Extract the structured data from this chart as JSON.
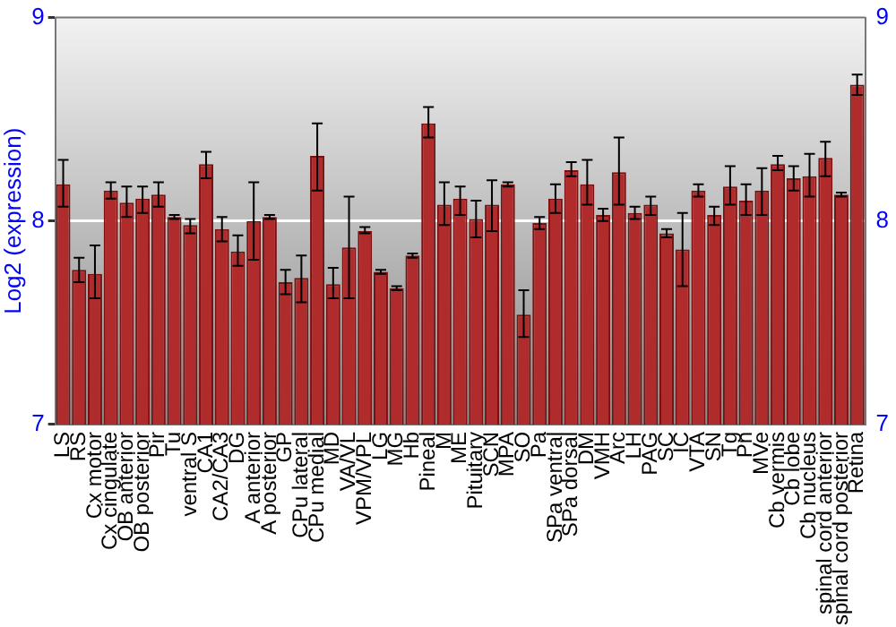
{
  "chart_data": {
    "type": "bar",
    "ylabel": "Log2 (expression)",
    "categories": [
      "LS",
      "RS",
      "Cx motor",
      "Cx cingulate",
      "OB anterior",
      "OB posterior",
      "Pir",
      "Tu",
      "ventral S",
      "CA1",
      "CA2/CA3",
      "DG",
      "A anterior",
      "A posterior",
      "GP",
      "CPu lateral",
      "CPu medial",
      "MD",
      "VA/VL",
      "VPM/VPL",
      "LG",
      "MG",
      "Hb",
      "Pineal",
      "M",
      "ME",
      "Pituitary",
      "SCN",
      "MPA",
      "SO",
      "Pa",
      "SPa ventral",
      "SPa dorsal",
      "DM",
      "VMH",
      "Arc",
      "LH",
      "PAG",
      "SC",
      "IC",
      "VTA",
      "SN",
      "Tg",
      "Pn",
      "MVe",
      "Cb vermis",
      "Cb lobe",
      "Cb nucleus",
      "spinal cord anterior",
      "spinal cord posterior",
      "Retina"
    ],
    "series": [
      {
        "color": "#b02c2c",
        "values": [
          8.18,
          7.76,
          7.74,
          8.15,
          8.09,
          8.11,
          8.13,
          8.02,
          7.98,
          8.28,
          7.96,
          7.85,
          8.0,
          8.02,
          7.7,
          7.72,
          8.32,
          7.69,
          7.87,
          7.95,
          7.75,
          7.67,
          7.83,
          8.48,
          8.08,
          8.11,
          8.01,
          8.08,
          8.18,
          7.54,
          7.99,
          8.11,
          8.25,
          8.18,
          8.03,
          8.24,
          8.04,
          8.08,
          7.94,
          7.86,
          8.15,
          8.03,
          8.17,
          8.1,
          8.15,
          8.28,
          8.21,
          8.22,
          8.31,
          8.13,
          8.67
        ],
        "errors": [
          [
            8.07,
            8.3
          ],
          [
            7.7,
            7.82
          ],
          [
            7.62,
            7.88
          ],
          [
            8.11,
            8.19
          ],
          [
            8.02,
            8.17
          ],
          [
            8.04,
            8.17
          ],
          [
            8.07,
            8.19
          ],
          [
            8.01,
            8.03
          ],
          [
            7.94,
            8.01
          ],
          [
            8.21,
            8.34
          ],
          [
            7.9,
            8.02
          ],
          [
            7.78,
            7.93
          ],
          [
            7.81,
            8.19
          ],
          [
            8.01,
            8.03
          ],
          [
            7.64,
            7.76
          ],
          [
            7.6,
            7.83
          ],
          [
            8.15,
            8.48
          ],
          [
            7.62,
            7.77
          ],
          [
            7.62,
            8.12
          ],
          [
            7.94,
            7.97
          ],
          [
            7.74,
            7.76
          ],
          [
            7.66,
            7.68
          ],
          [
            7.82,
            7.84
          ],
          [
            8.41,
            8.56
          ],
          [
            7.98,
            8.19
          ],
          [
            8.03,
            8.17
          ],
          [
            7.92,
            8.1
          ],
          [
            7.95,
            8.2
          ],
          [
            8.17,
            8.19
          ],
          [
            7.43,
            7.66
          ],
          [
            7.96,
            8.02
          ],
          [
            8.04,
            8.18
          ],
          [
            8.22,
            8.29
          ],
          [
            8.08,
            8.3
          ],
          [
            8.0,
            8.06
          ],
          [
            8.08,
            8.41
          ],
          [
            8.01,
            8.07
          ],
          [
            8.03,
            8.12
          ],
          [
            7.92,
            7.96
          ],
          [
            7.68,
            8.04
          ],
          [
            8.12,
            8.18
          ],
          [
            7.98,
            8.07
          ],
          [
            8.08,
            8.27
          ],
          [
            8.03,
            8.18
          ],
          [
            8.03,
            8.26
          ],
          [
            8.25,
            8.32
          ],
          [
            8.15,
            8.27
          ],
          [
            8.12,
            8.33
          ],
          [
            8.22,
            8.39
          ],
          [
            8.12,
            8.14
          ],
          [
            8.62,
            8.72
          ]
        ]
      }
    ],
    "ylim": [
      7,
      9
    ],
    "yticks": [
      7,
      8,
      9
    ],
    "y2lim": [
      7,
      9
    ],
    "y2ticks": [
      7,
      8,
      9
    ],
    "grid": "y",
    "legend": false
  }
}
